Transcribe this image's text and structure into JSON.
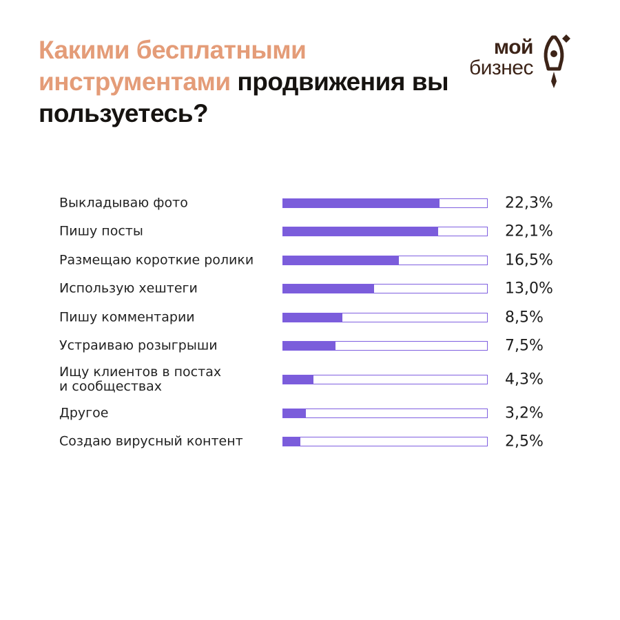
{
  "header": {
    "title_accent": "Какими бесплатными инструментами",
    "title_rest": " продвижения вы пользуетесь?"
  },
  "logo": {
    "line1": "мой",
    "line2": "бизнес"
  },
  "colors": {
    "accent": "#e49c78",
    "bar": "#7b5ddb",
    "bar_border": "#7e5ee0",
    "logo": "#3d2418"
  },
  "chart_data": {
    "type": "bar",
    "orientation": "horizontal",
    "categories": [
      [
        "Выкладываю фото"
      ],
      [
        "Пишу посты"
      ],
      [
        "Размещаю короткие ролики"
      ],
      [
        "Использую хештеги"
      ],
      [
        "Пишу комментарии"
      ],
      [
        "Устраиваю розыгрыши"
      ],
      [
        "Ищу клиентов в постах",
        "и сообществах"
      ],
      [
        "Другое"
      ],
      [
        "Создаю вирусный контент"
      ]
    ],
    "values": [
      22.3,
      22.1,
      16.5,
      13.0,
      8.5,
      7.5,
      4.3,
      3.2,
      2.5
    ],
    "value_labels": [
      "22,3%",
      "22,1%",
      "16,5%",
      "13,0%",
      "8,5%",
      "7,5%",
      "4,3%",
      "3,2%",
      "2,5%"
    ],
    "unit": "%",
    "xlim": [
      0,
      29
    ],
    "grid": false,
    "legend": "none"
  }
}
